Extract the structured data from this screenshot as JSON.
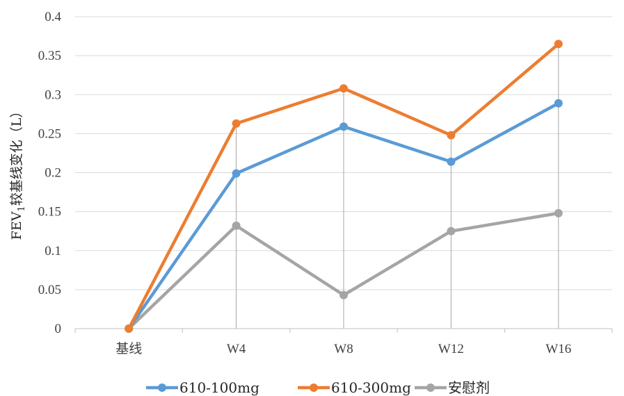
{
  "chart_data": {
    "type": "line",
    "categories": [
      "基线",
      "W4",
      "W8",
      "W12",
      "W16"
    ],
    "series": [
      {
        "name": "610-100mg",
        "color": "#5b9bd5",
        "values": [
          0,
          0.199,
          0.259,
          0.214,
          0.289
        ]
      },
      {
        "name": "610-300mg",
        "color": "#ed7d31",
        "values": [
          0,
          0.263,
          0.308,
          0.248,
          0.365
        ]
      },
      {
        "name": "安慰剂",
        "color": "#a5a5a5",
        "values": [
          0,
          0.132,
          0.043,
          0.125,
          0.148
        ]
      }
    ],
    "title": "",
    "xlabel": "",
    "ylabel": {
      "main": "FEV",
      "sub": "1",
      "rest": "较基线变化（L）"
    },
    "ylim": [
      0,
      0.4
    ],
    "yticks": [
      "0",
      "0.05",
      "0.1",
      "0.15",
      "0.2",
      "0.25",
      "0.3",
      "0.35",
      "0.4"
    ],
    "grid": true,
    "drop_lines": true,
    "legend_position": "bottom"
  }
}
